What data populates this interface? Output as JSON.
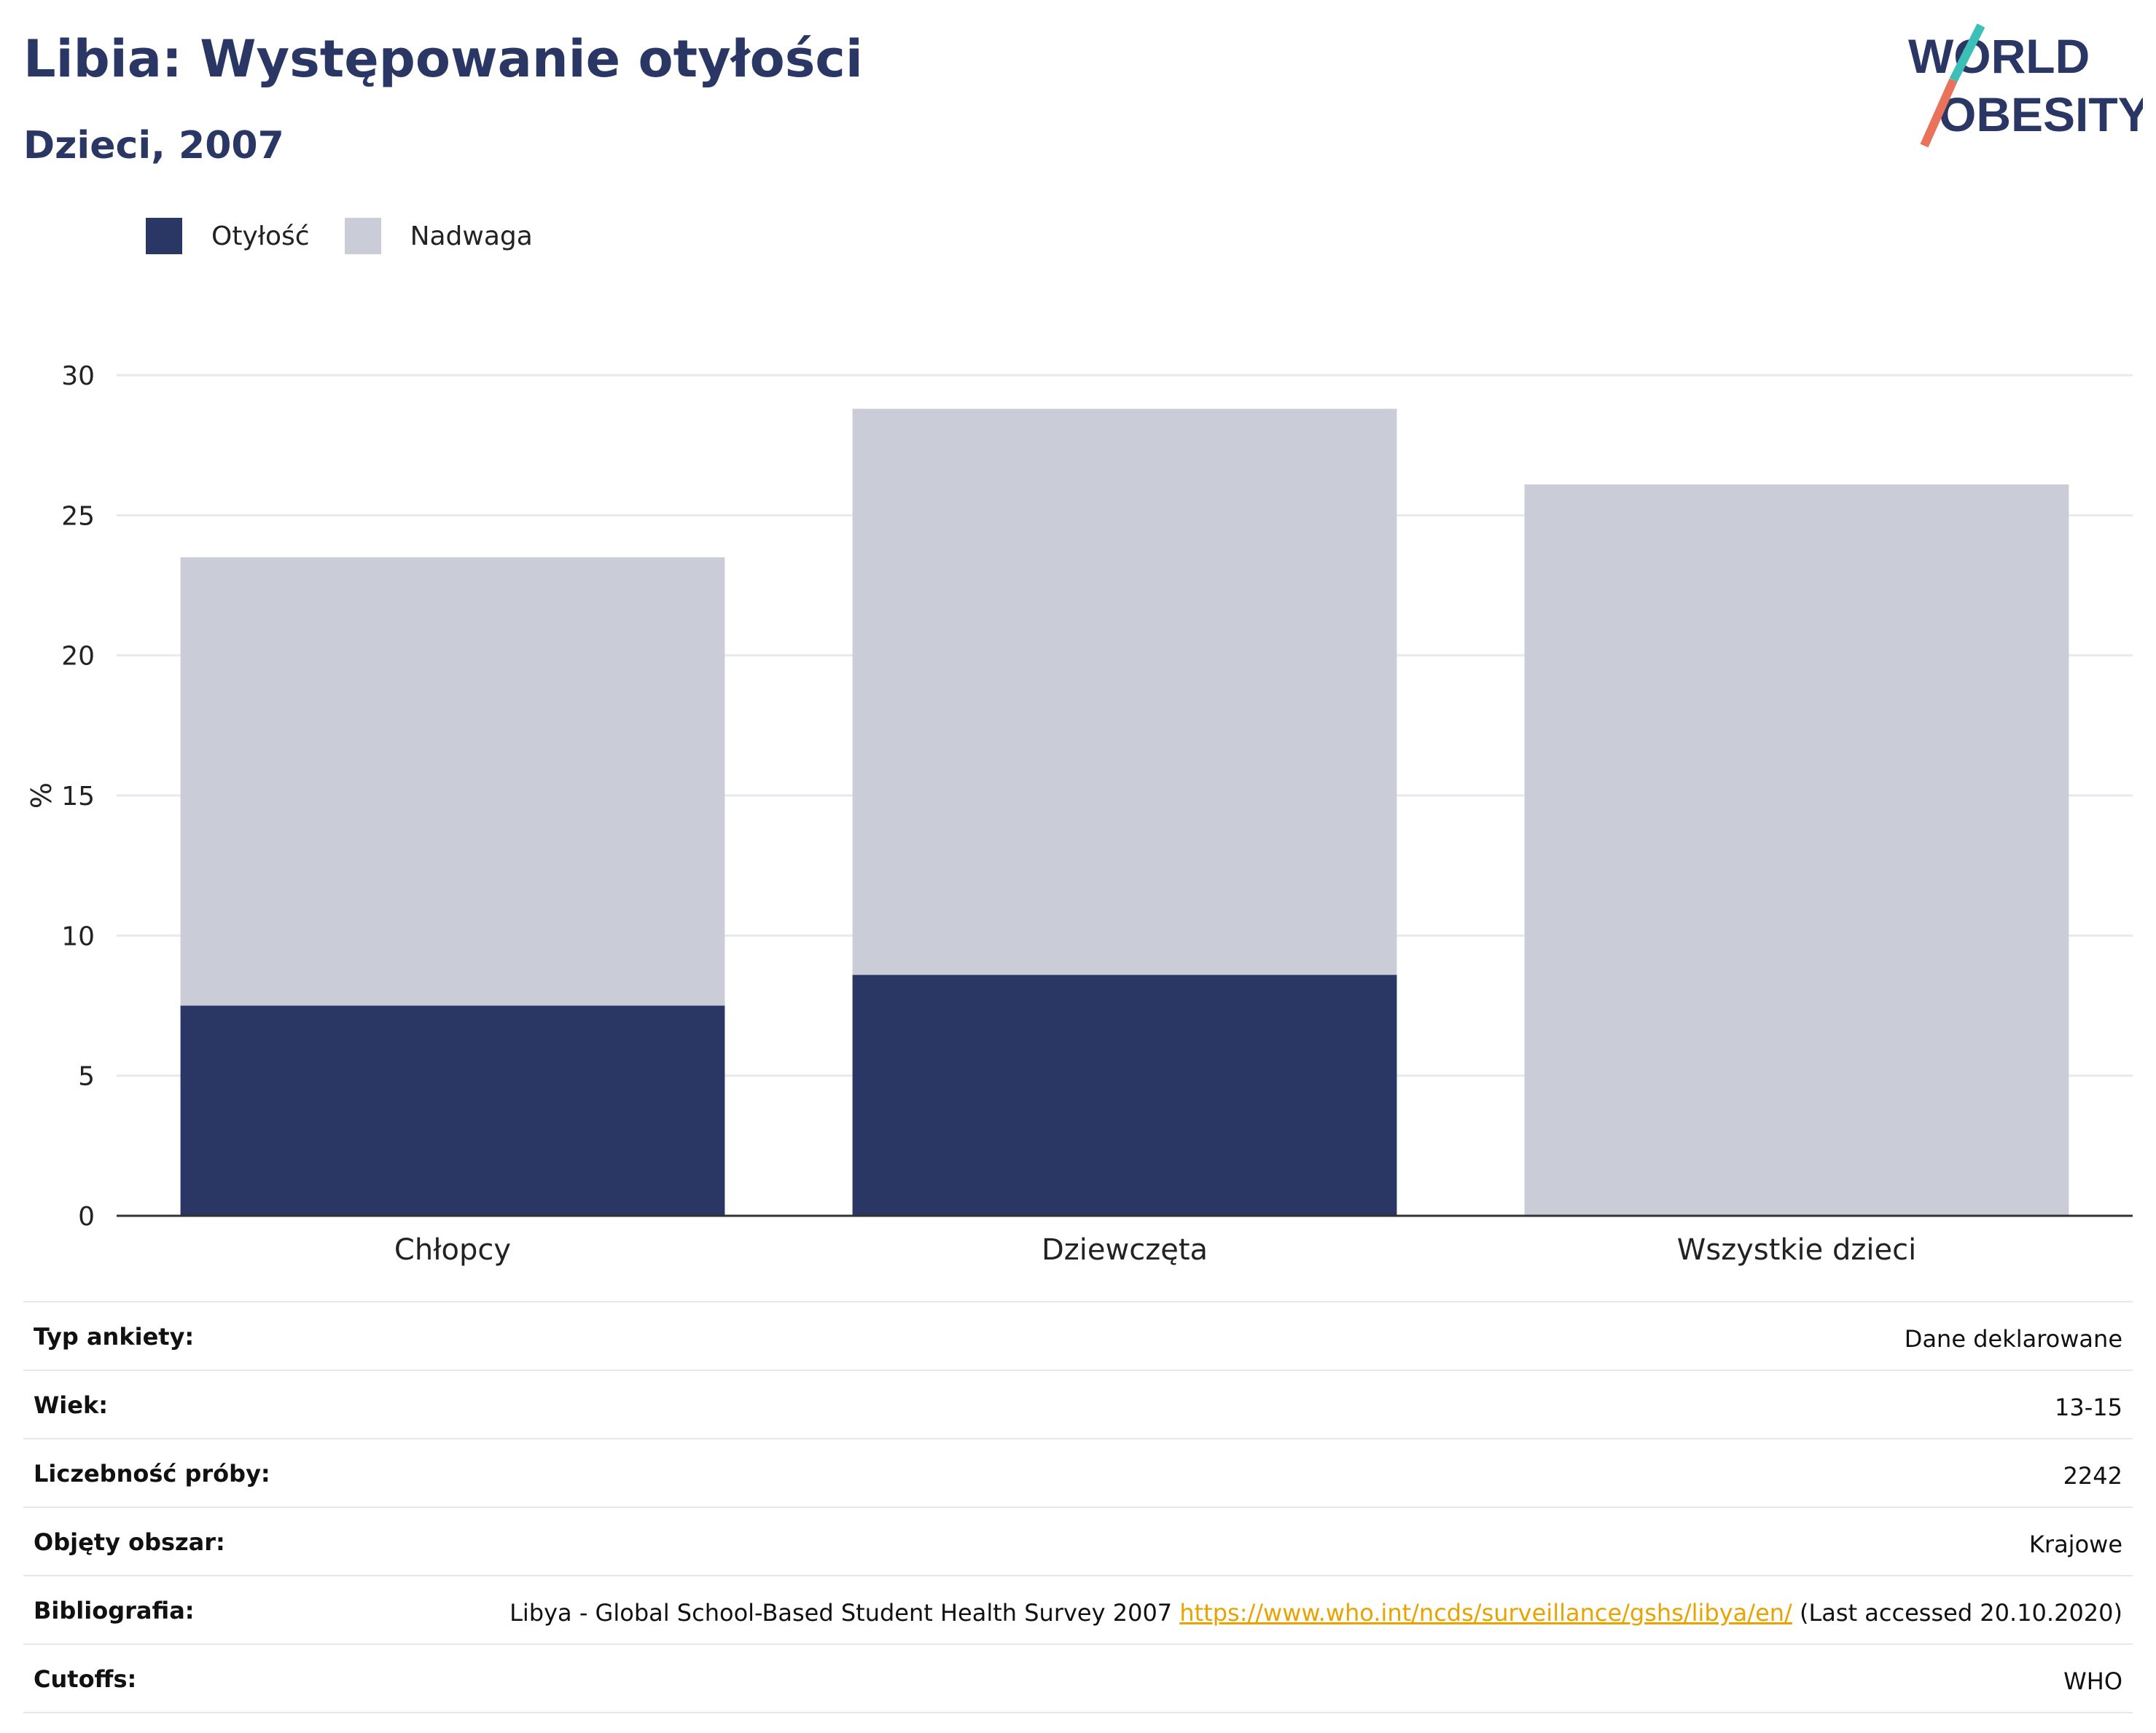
{
  "header": {
    "title": "Libia: Występowanie otyłości",
    "subtitle": "Dzieci, 2007"
  },
  "logo": {
    "line1": "WORLD",
    "line2": "OBESITY"
  },
  "colors": {
    "obesity": "#2a3765",
    "overweight": "#caccd8",
    "text": "#2a3765",
    "link": "#e9a300"
  },
  "chart_data": {
    "type": "bar",
    "stacked": true,
    "categories": [
      "Chłopcy",
      "Dziewczęta",
      "Wszystkie dzieci"
    ],
    "series": [
      {
        "name": "Otyłość",
        "color": "#2a3765",
        "values": [
          7.5,
          8.6,
          0
        ]
      },
      {
        "name": "Nadwaga",
        "color": "#caccd8",
        "values": [
          16.0,
          20.2,
          26.1
        ]
      }
    ],
    "ylabel": "%",
    "ylim": [
      0,
      30
    ],
    "yticks": [
      0,
      5,
      10,
      15,
      20,
      25,
      30
    ],
    "grid": true,
    "legend_position": "top-left"
  },
  "meta": {
    "rows": [
      {
        "label": "Typ ankiety:",
        "value": "Dane deklarowane"
      },
      {
        "label": "Wiek:",
        "value": "13-15"
      },
      {
        "label": "Liczebność próby:",
        "value": "2242"
      },
      {
        "label": "Objęty obszar:",
        "value": "Krajowe"
      },
      {
        "label": "Bibliografia:",
        "value": "Libya - Global School-Based Student Health Survey 2007",
        "link": "https://www.who.int/ncds/surveillance/gshs/libya/en/",
        "value_suffix": "(Last accessed 20.10.2020)"
      },
      {
        "label": "Cutoffs:",
        "value": "WHO"
      }
    ]
  }
}
